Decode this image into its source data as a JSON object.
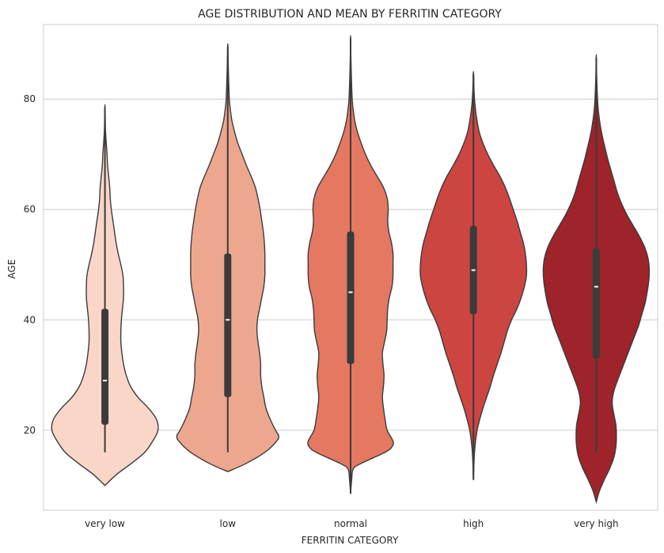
{
  "chart_data": {
    "type": "violin",
    "title": "AGE DISTRIBUTION AND MEAN BY FERRITIN CATEGORY",
    "xlabel": "FERRITIN CATEGORY",
    "ylabel": "AGE",
    "ylim": [
      5.5,
      93.5
    ],
    "yticks": [
      20,
      40,
      60,
      80
    ],
    "grid": "horizontal",
    "categories": [
      "very low",
      "low",
      "normal",
      "high",
      "very high"
    ],
    "colors": [
      "#f9d6c8",
      "#eea78f",
      "#e57860",
      "#cc4541",
      "#9e232b"
    ],
    "series": [
      {
        "category": "very low",
        "min_extent": 10,
        "max_extent": 79,
        "whisker": [
          16,
          78.5
        ],
        "q1": 21,
        "q3": 42,
        "median": 29,
        "density": [
          [
            10,
            0
          ],
          [
            12,
            0.22
          ],
          [
            14,
            0.5
          ],
          [
            16,
            0.75
          ],
          [
            18,
            0.9
          ],
          [
            20,
            1.0
          ],
          [
            22,
            0.97
          ],
          [
            24,
            0.82
          ],
          [
            26,
            0.62
          ],
          [
            28,
            0.48
          ],
          [
            30,
            0.4
          ],
          [
            32,
            0.35
          ],
          [
            34,
            0.32
          ],
          [
            36,
            0.3
          ],
          [
            38,
            0.3
          ],
          [
            40,
            0.31
          ],
          [
            42,
            0.33
          ],
          [
            44,
            0.35
          ],
          [
            46,
            0.35
          ],
          [
            48,
            0.34
          ],
          [
            50,
            0.3
          ],
          [
            52,
            0.25
          ],
          [
            54,
            0.21
          ],
          [
            56,
            0.18
          ],
          [
            58,
            0.15
          ],
          [
            60,
            0.12
          ],
          [
            62,
            0.1
          ],
          [
            64,
            0.09
          ],
          [
            66,
            0.07
          ],
          [
            68,
            0.05
          ],
          [
            70,
            0.04
          ],
          [
            72,
            0.025
          ],
          [
            74,
            0.012
          ],
          [
            76,
            0.006
          ],
          [
            79,
            0
          ]
        ]
      },
      {
        "category": "low",
        "min_extent": 12.5,
        "max_extent": 90,
        "whisker": [
          16,
          89.5
        ],
        "q1": 26,
        "q3": 52,
        "median": 40,
        "density": [
          [
            12.5,
            0
          ],
          [
            14,
            0.35
          ],
          [
            16,
            0.7
          ],
          [
            18,
            0.92
          ],
          [
            19,
            0.96
          ],
          [
            20,
            0.9
          ],
          [
            22,
            0.8
          ],
          [
            24,
            0.72
          ],
          [
            26,
            0.68
          ],
          [
            28,
            0.64
          ],
          [
            30,
            0.62
          ],
          [
            32,
            0.62
          ],
          [
            34,
            0.6
          ],
          [
            36,
            0.57
          ],
          [
            38,
            0.55
          ],
          [
            40,
            0.56
          ],
          [
            42,
            0.6
          ],
          [
            44,
            0.64
          ],
          [
            46,
            0.68
          ],
          [
            48,
            0.7
          ],
          [
            50,
            0.7
          ],
          [
            52,
            0.7
          ],
          [
            54,
            0.69
          ],
          [
            56,
            0.67
          ],
          [
            58,
            0.64
          ],
          [
            60,
            0.61
          ],
          [
            62,
            0.57
          ],
          [
            64,
            0.52
          ],
          [
            66,
            0.44
          ],
          [
            68,
            0.35
          ],
          [
            70,
            0.27
          ],
          [
            72,
            0.19
          ],
          [
            74,
            0.13
          ],
          [
            76,
            0.08
          ],
          [
            78,
            0.05
          ],
          [
            80,
            0.03
          ],
          [
            84,
            0.015
          ],
          [
            88,
            0.005
          ],
          [
            90,
            0
          ]
        ]
      },
      {
        "category": "normal",
        "min_extent": 8.5,
        "max_extent": 91.5,
        "whisker": [
          8.5,
          91
        ],
        "q1": 32,
        "q3": 56,
        "median": 45,
        "density": [
          [
            8.5,
            0
          ],
          [
            11,
            0.02
          ],
          [
            13,
            0.05
          ],
          [
            14,
            0.2
          ],
          [
            16,
            0.65
          ],
          [
            17,
            0.78
          ],
          [
            18,
            0.8
          ],
          [
            20,
            0.69
          ],
          [
            22,
            0.65
          ],
          [
            24,
            0.62
          ],
          [
            26,
            0.6
          ],
          [
            28,
            0.62
          ],
          [
            30,
            0.63
          ],
          [
            32,
            0.61
          ],
          [
            34,
            0.6
          ],
          [
            36,
            0.64
          ],
          [
            38,
            0.68
          ],
          [
            40,
            0.69
          ],
          [
            42,
            0.7
          ],
          [
            44,
            0.73
          ],
          [
            46,
            0.78
          ],
          [
            48,
            0.8
          ],
          [
            50,
            0.8
          ],
          [
            52,
            0.8
          ],
          [
            54,
            0.77
          ],
          [
            56,
            0.72
          ],
          [
            58,
            0.7
          ],
          [
            60,
            0.71
          ],
          [
            62,
            0.69
          ],
          [
            64,
            0.62
          ],
          [
            66,
            0.5
          ],
          [
            68,
            0.38
          ],
          [
            70,
            0.28
          ],
          [
            72,
            0.2
          ],
          [
            74,
            0.13
          ],
          [
            76,
            0.08
          ],
          [
            78,
            0.05
          ],
          [
            80,
            0.03
          ],
          [
            84,
            0.015
          ],
          [
            88,
            0.005
          ],
          [
            91.5,
            0
          ]
        ]
      },
      {
        "category": "high",
        "min_extent": 11,
        "max_extent": 85,
        "whisker": [
          11,
          84.5
        ],
        "q1": 41,
        "q3": 57,
        "median": 49,
        "density": [
          [
            11,
            0
          ],
          [
            14,
            0.01
          ],
          [
            16,
            0.02
          ],
          [
            18,
            0.04
          ],
          [
            20,
            0.07
          ],
          [
            22,
            0.12
          ],
          [
            24,
            0.18
          ],
          [
            26,
            0.25
          ],
          [
            28,
            0.32
          ],
          [
            30,
            0.38
          ],
          [
            32,
            0.45
          ],
          [
            34,
            0.52
          ],
          [
            36,
            0.58
          ],
          [
            38,
            0.64
          ],
          [
            40,
            0.72
          ],
          [
            42,
            0.82
          ],
          [
            44,
            0.9
          ],
          [
            46,
            0.96
          ],
          [
            48,
            1.0
          ],
          [
            50,
            1.0
          ],
          [
            52,
            0.98
          ],
          [
            54,
            0.94
          ],
          [
            56,
            0.88
          ],
          [
            58,
            0.82
          ],
          [
            60,
            0.75
          ],
          [
            62,
            0.68
          ],
          [
            64,
            0.6
          ],
          [
            66,
            0.5
          ],
          [
            68,
            0.38
          ],
          [
            70,
            0.27
          ],
          [
            72,
            0.18
          ],
          [
            74,
            0.11
          ],
          [
            76,
            0.07
          ],
          [
            78,
            0.04
          ],
          [
            80,
            0.02
          ],
          [
            82,
            0.01
          ],
          [
            85,
            0
          ]
        ]
      },
      {
        "category": "very high",
        "min_extent": 7,
        "max_extent": 88,
        "whisker": [
          16,
          87.5
        ],
        "q1": 33,
        "q3": 53,
        "median": 46,
        "density": [
          [
            7,
            0
          ],
          [
            9,
            0.06
          ],
          [
            11,
            0.15
          ],
          [
            13,
            0.25
          ],
          [
            15,
            0.33
          ],
          [
            17,
            0.37
          ],
          [
            19,
            0.38
          ],
          [
            21,
            0.37
          ],
          [
            23,
            0.33
          ],
          [
            25,
            0.3
          ],
          [
            27,
            0.33
          ],
          [
            29,
            0.4
          ],
          [
            31,
            0.48
          ],
          [
            33,
            0.56
          ],
          [
            35,
            0.64
          ],
          [
            37,
            0.72
          ],
          [
            39,
            0.8
          ],
          [
            41,
            0.86
          ],
          [
            43,
            0.92
          ],
          [
            45,
            0.96
          ],
          [
            47,
            0.99
          ],
          [
            49,
            1.0
          ],
          [
            51,
            0.98
          ],
          [
            53,
            0.92
          ],
          [
            55,
            0.82
          ],
          [
            57,
            0.7
          ],
          [
            59,
            0.58
          ],
          [
            61,
            0.48
          ],
          [
            63,
            0.4
          ],
          [
            65,
            0.34
          ],
          [
            67,
            0.28
          ],
          [
            69,
            0.22
          ],
          [
            71,
            0.17
          ],
          [
            73,
            0.12
          ],
          [
            75,
            0.08
          ],
          [
            77,
            0.05
          ],
          [
            79,
            0.03
          ],
          [
            82,
            0.015
          ],
          [
            85,
            0.005
          ],
          [
            88,
            0
          ]
        ]
      }
    ]
  }
}
